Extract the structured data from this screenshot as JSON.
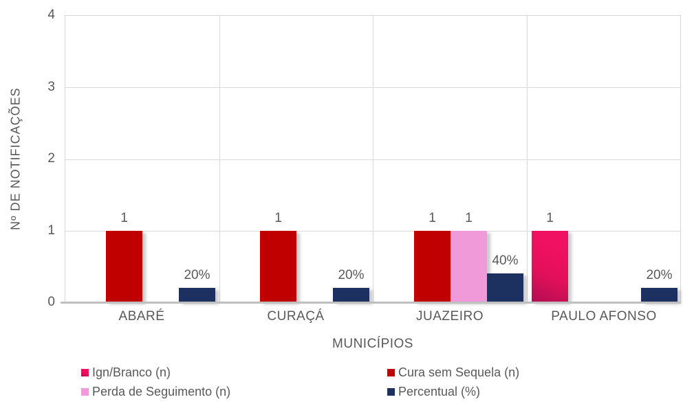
{
  "chart_data": {
    "type": "bar",
    "title": "",
    "xlabel": "MUNICÍPIOS",
    "ylabel": "Nº DE NOTIFICAÇÕES",
    "ylim": [
      0,
      4
    ],
    "yticks_top_to_bottom": [
      "4",
      "3",
      "2",
      "1",
      "0"
    ],
    "grid": true,
    "legend_position": "bottom",
    "categories": [
      "ABARÉ",
      "CURAÇÁ",
      "JUAZEIRO",
      "PAULO AFONSO"
    ],
    "series": [
      {
        "name": "Ign/Branco (n)",
        "color": "#e8115b",
        "gradient": true,
        "values": [
          0,
          0,
          0,
          1
        ],
        "labels": [
          "",
          "",
          "",
          "1"
        ]
      },
      {
        "name": "Cura sem Sequela (n)",
        "color": "#c00000",
        "gradient": false,
        "values": [
          1,
          1,
          1,
          0
        ],
        "labels": [
          "1",
          "1",
          "1",
          ""
        ]
      },
      {
        "name": "Perda de Seguimento (n)",
        "color": "#f09ad9",
        "gradient": false,
        "values": [
          0,
          0,
          1,
          0
        ],
        "labels": [
          "",
          "",
          "1",
          ""
        ]
      },
      {
        "name": "Percentual (%)",
        "color": "#1d3160",
        "gradient": false,
        "values": [
          0.2,
          0.2,
          0.4,
          0.2
        ],
        "labels": [
          "20%",
          "20%",
          "40%",
          "20%"
        ]
      }
    ]
  },
  "legend": {
    "columns": [
      {
        "items": [
          {
            "series_index": 0
          },
          {
            "series_index": 2
          }
        ]
      },
      {
        "items": [
          {
            "series_index": 1
          },
          {
            "series_index": 3
          }
        ]
      }
    ]
  },
  "colors": {
    "gridline": "#d9d9d9",
    "axis_line": "#bfbfbf",
    "text": "#595959"
  }
}
